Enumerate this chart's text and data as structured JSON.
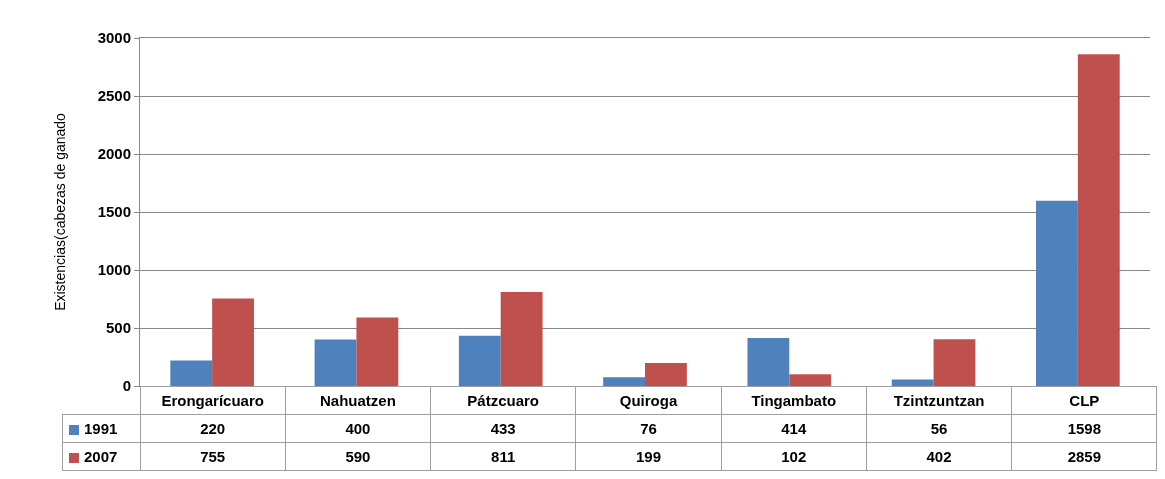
{
  "chart_data": {
    "type": "bar",
    "ylabel": "Existencias(cabezas de ganado",
    "categories": [
      "Erongarícuaro",
      "Nahuatzen",
      "Pátzcuaro",
      "Quiroga",
      "Tingambato",
      "Tzintzuntzan",
      "CLP"
    ],
    "series": [
      {
        "name": "1991",
        "color": "#4f81bd",
        "values": [
          220,
          400,
          433,
          76,
          414,
          56,
          1598
        ]
      },
      {
        "name": "2007",
        "color": "#c0504d",
        "values": [
          755,
          590,
          811,
          199,
          102,
          402,
          2859
        ]
      }
    ],
    "ylim": [
      0,
      3000
    ],
    "yticks": [
      0,
      500,
      1000,
      1500,
      2000,
      2500,
      3000
    ],
    "grid": "y",
    "legend": "bottom",
    "data_labels": true
  }
}
